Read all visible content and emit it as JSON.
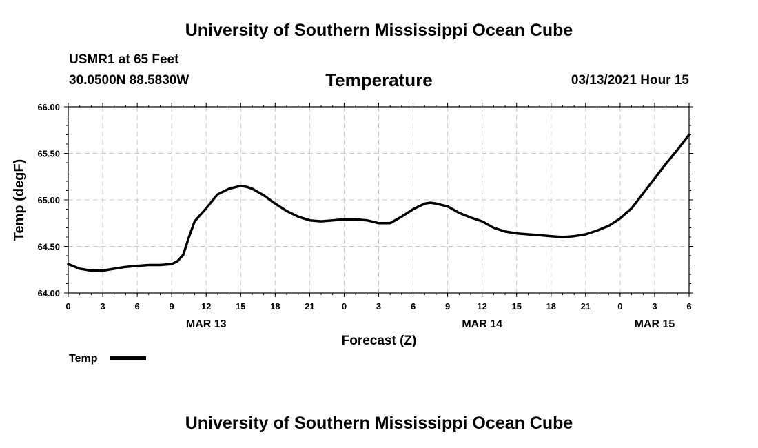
{
  "header": {
    "title": "University of Southern Mississippi Ocean Cube",
    "station": "USMR1 at 65 Feet",
    "coords": "30.0500N 88.5830W",
    "timestamp": "03/13/2021 Hour 15"
  },
  "footer": {
    "title": "University of Southern Mississippi Ocean Cube"
  },
  "chart_data": {
    "type": "line",
    "title": "Temperature",
    "xlabel": "Forecast (Z)",
    "ylabel": "Temp (degF)",
    "ylim": [
      64.0,
      66.0
    ],
    "yticks": [
      "64.00",
      "64.50",
      "65.00",
      "65.50",
      "66.00"
    ],
    "xlim": [
      0,
      54
    ],
    "xticks": [
      {
        "x": 0,
        "label": "0"
      },
      {
        "x": 3,
        "label": "3"
      },
      {
        "x": 6,
        "label": "6"
      },
      {
        "x": 9,
        "label": "9"
      },
      {
        "x": 12,
        "label": "12"
      },
      {
        "x": 15,
        "label": "15"
      },
      {
        "x": 18,
        "label": "18"
      },
      {
        "x": 21,
        "label": "21"
      },
      {
        "x": 24,
        "label": "0"
      },
      {
        "x": 27,
        "label": "3"
      },
      {
        "x": 30,
        "label": "6"
      },
      {
        "x": 33,
        "label": "9"
      },
      {
        "x": 36,
        "label": "12"
      },
      {
        "x": 39,
        "label": "15"
      },
      {
        "x": 42,
        "label": "18"
      },
      {
        "x": 45,
        "label": "21"
      },
      {
        "x": 48,
        "label": "0"
      },
      {
        "x": 51,
        "label": "3"
      },
      {
        "x": 54,
        "label": "6"
      }
    ],
    "date_labels": [
      {
        "x": 12,
        "label": "MAR 13"
      },
      {
        "x": 36,
        "label": "MAR 14"
      },
      {
        "x": 51,
        "label": "MAR 15"
      }
    ],
    "grid": true,
    "legend_position": "bottom-left",
    "series": [
      {
        "name": "Temp",
        "color": "#000000",
        "x": [
          0,
          1,
          2,
          3,
          4,
          5,
          6,
          7,
          8,
          9,
          9.5,
          10,
          10.5,
          11,
          12,
          13,
          14,
          15,
          15.5,
          16,
          17,
          18,
          19,
          20,
          21,
          22,
          23,
          24,
          25,
          26,
          27,
          28,
          29,
          30,
          31,
          31.5,
          32,
          33,
          34,
          35,
          36,
          37,
          38,
          39,
          40,
          41,
          42,
          43,
          44,
          45,
          46,
          47,
          48,
          49,
          50,
          51,
          52,
          53,
          54
        ],
        "values": [
          64.31,
          64.26,
          64.24,
          64.24,
          64.26,
          64.28,
          64.29,
          64.3,
          64.3,
          64.31,
          64.34,
          64.41,
          64.6,
          64.77,
          64.91,
          65.06,
          65.12,
          65.15,
          65.14,
          65.12,
          65.05,
          64.96,
          64.88,
          64.82,
          64.78,
          64.77,
          64.78,
          64.79,
          64.79,
          64.78,
          64.75,
          64.75,
          64.82,
          64.9,
          64.96,
          64.97,
          64.96,
          64.93,
          64.86,
          64.81,
          64.77,
          64.7,
          64.66,
          64.64,
          64.63,
          64.62,
          64.61,
          64.6,
          64.61,
          64.63,
          64.67,
          64.72,
          64.8,
          64.91,
          65.07,
          65.23,
          65.39,
          65.54,
          65.7
        ]
      }
    ]
  }
}
